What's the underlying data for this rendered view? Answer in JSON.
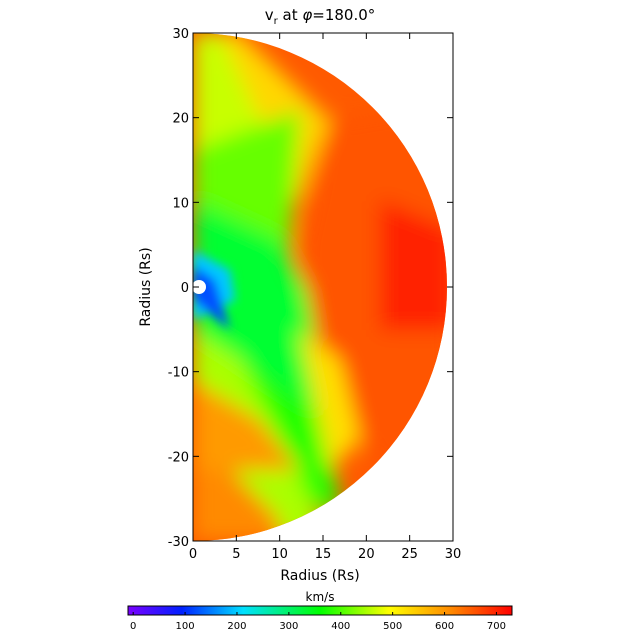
{
  "chart_data": {
    "type": "heatmap",
    "title": "v",
    "title_subscript": "r",
    "title_rest": " at ",
    "title_symbol": "φ",
    "title_value": "=180.0°",
    "xlabel": "Radius (Rs)",
    "ylabel": "Radius (Rs)",
    "xlim": [
      0,
      30
    ],
    "ylim": [
      -30,
      30
    ],
    "x_ticks": [
      0,
      5,
      10,
      15,
      20,
      25,
      30
    ],
    "y_ticks": [
      -30,
      -20,
      -10,
      0,
      10,
      20,
      30
    ],
    "domain_shape": "half-disk, radius 30 Rs, centered at origin, x >= 0",
    "colorbar": {
      "label": "km/s",
      "range": [
        -10,
        730
      ],
      "ticks": [
        0,
        100,
        200,
        300,
        400,
        500,
        600,
        700
      ],
      "colormap": "rainbow (violet → blue → cyan → green → yellow → orange → red)"
    },
    "field_description": "Radial solar wind speed; slow (~0-200 km/s) near the inner boundary at the origin, a green/yellow slow stream band from the lower-left diagonally, fast (~650-720 km/s) red flow at large radius near the equator.",
    "inner_boundary_radius": 0.9
  }
}
